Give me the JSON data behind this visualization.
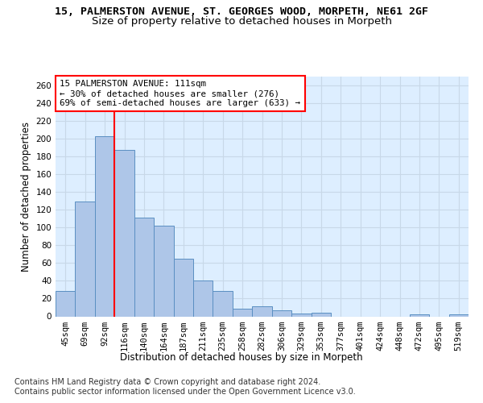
{
  "title_line1": "15, PALMERSTON AVENUE, ST. GEORGES WOOD, MORPETH, NE61 2GF",
  "title_line2": "Size of property relative to detached houses in Morpeth",
  "xlabel": "Distribution of detached houses by size in Morpeth",
  "ylabel": "Number of detached properties",
  "categories": [
    "45sqm",
    "69sqm",
    "92sqm",
    "116sqm",
    "140sqm",
    "164sqm",
    "187sqm",
    "211sqm",
    "235sqm",
    "258sqm",
    "282sqm",
    "306sqm",
    "329sqm",
    "353sqm",
    "377sqm",
    "401sqm",
    "424sqm",
    "448sqm",
    "472sqm",
    "495sqm",
    "519sqm"
  ],
  "values": [
    29,
    129,
    203,
    187,
    111,
    102,
    65,
    40,
    29,
    9,
    11,
    7,
    3,
    4,
    0,
    0,
    0,
    0,
    2,
    0,
    2
  ],
  "bar_color": "#aec6e8",
  "bar_edge_color": "#5a8fc2",
  "vline_position": 2.5,
  "vline_color": "red",
  "annotation_text": "15 PALMERSTON AVENUE: 111sqm\n← 30% of detached houses are smaller (276)\n69% of semi-detached houses are larger (633) →",
  "annotation_box_color": "white",
  "annotation_box_edge": "red",
  "ylim": [
    0,
    270
  ],
  "yticks": [
    0,
    20,
    40,
    60,
    80,
    100,
    120,
    140,
    160,
    180,
    200,
    220,
    240,
    260
  ],
  "grid_color": "#c8d8e8",
  "background_color": "#ddeeff",
  "footer_line1": "Contains HM Land Registry data © Crown copyright and database right 2024.",
  "footer_line2": "Contains public sector information licensed under the Open Government Licence v3.0.",
  "title_fontsize": 9.5,
  "subtitle_fontsize": 9.5,
  "axis_label_fontsize": 8.5,
  "tick_fontsize": 7.5,
  "annotation_fontsize": 7.8,
  "footer_fontsize": 7.0
}
